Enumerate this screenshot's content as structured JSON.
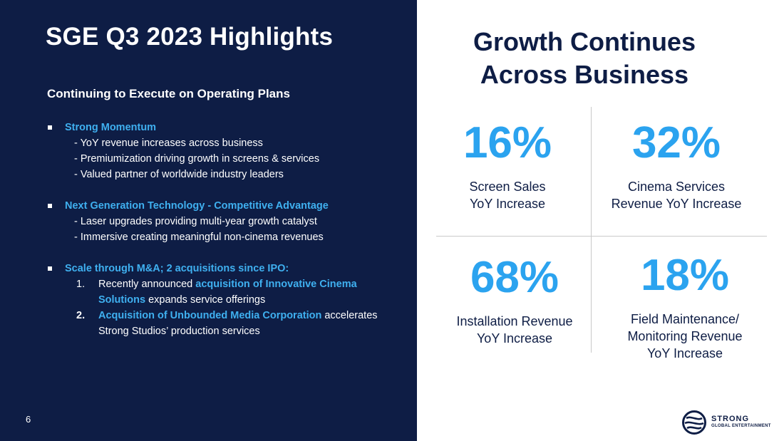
{
  "left": {
    "title": "SGE Q3 2023 Highlights",
    "subtitle": "Continuing to Execute on Operating Plans",
    "sections": [
      {
        "heading": "Strong Momentum",
        "lines": [
          "- YoY revenue increases across business",
          "- Premiumization driving growth in screens & services",
          "- Valued partner of worldwide industry leaders"
        ]
      },
      {
        "heading": "Next Generation Technology - Competitive Advantage",
        "lines": [
          "- Laser upgrades providing multi-year growth catalyst",
          "- Immersive creating meaningful non-cinema revenues"
        ]
      },
      {
        "heading": "Scale through M&A; 2 acquisitions since IPO:",
        "items": [
          {
            "label": "1.",
            "text_before": "Recently announced ",
            "highlight": "acquisition of Innovative Cinema Solutions",
            "text_after": " expands service offerings"
          },
          {
            "label": "2.",
            "text_before": "",
            "highlight": "Acquisition of Unbounded Media Corporation",
            "text_after": " accelerates Strong Studios’ production services"
          }
        ]
      }
    ],
    "page_number": "6"
  },
  "right": {
    "title_line1": "Growth Continues",
    "title_line2": "Across Business",
    "stats": [
      {
        "value": "16%",
        "label_line1": "Screen Sales",
        "label_line2": "YoY Increase",
        "label_line3": ""
      },
      {
        "value": "32%",
        "label_line1": "Cinema Services",
        "label_line2": "Revenue YoY Increase",
        "label_line3": ""
      },
      {
        "value": "68%",
        "label_line1": "Installation Revenue",
        "label_line2": "YoY Increase",
        "label_line3": ""
      },
      {
        "value": "18%",
        "label_line1": "Field Maintenance/",
        "label_line2": "Monitoring Revenue",
        "label_line3": "YoY Increase"
      }
    ]
  },
  "logo": {
    "name": "STRONG",
    "tagline": "GLOBAL ENTERTAINMENT"
  },
  "colors": {
    "navy": "#0e1d45",
    "accent": "#2ba3ef",
    "heading_blue": "#3fb0f0"
  }
}
